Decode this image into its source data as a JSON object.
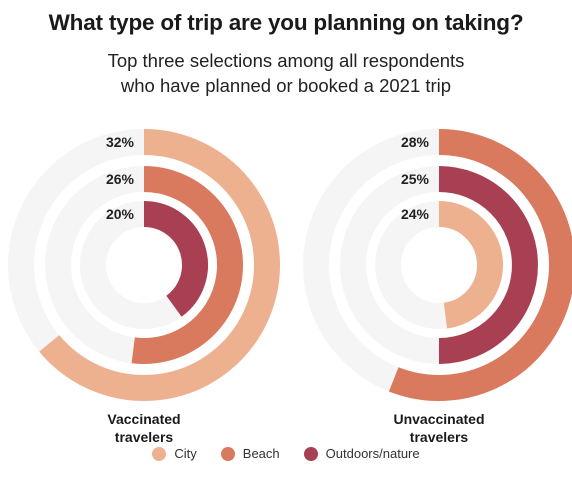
{
  "chart_data": {
    "type": "radial-bar",
    "title": "What type of trip are you planning on taking?",
    "subtitle": [
      "Top three selections among all respondents",
      "who have planned or booked a 2021 trip"
    ],
    "max_value": 50,
    "track_color": "#f5f5f5",
    "legend_placement": "bottom",
    "legend": [
      {
        "name": "City",
        "color": "#eeb190"
      },
      {
        "name": "Beach",
        "color": "#d9795d"
      },
      {
        "name": "Outdoors/nature",
        "color": "#a83f52"
      }
    ],
    "charts": [
      {
        "group": [
          "Vaccinated",
          "travelers"
        ],
        "rings": [
          {
            "series": "City",
            "value": 32,
            "label": "32%"
          },
          {
            "series": "Beach",
            "value": 26,
            "label": "26%"
          },
          {
            "series": "Outdoors/nature",
            "value": 20,
            "label": "20%"
          }
        ]
      },
      {
        "group": [
          "Unvaccinated",
          "travelers"
        ],
        "rings": [
          {
            "series": "Beach",
            "value": 28,
            "label": "28%"
          },
          {
            "series": "Outdoors/nature",
            "value": 25,
            "label": "25%"
          },
          {
            "series": "City",
            "value": 24,
            "label": "24%"
          }
        ]
      }
    ]
  }
}
